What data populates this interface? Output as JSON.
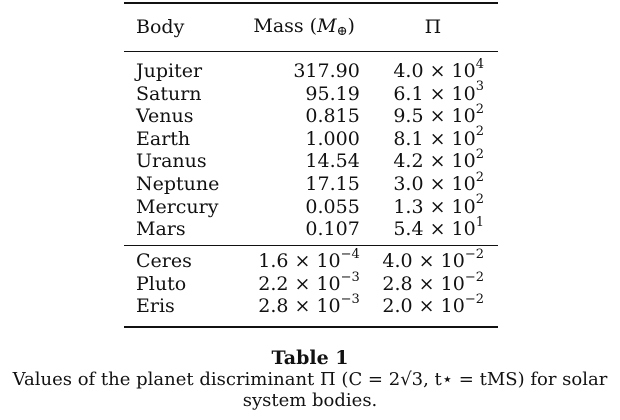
{
  "table": {
    "headers": [
      "Body",
      "Mass (M⊕)",
      "Π"
    ],
    "groups": [
      [
        [
          "Jupiter",
          "317.90",
          "4.0 × 10",
          "4"
        ],
        [
          "Saturn",
          "95.19",
          "6.1 × 10",
          "3"
        ],
        [
          "Venus",
          "0.815",
          "9.5 × 10",
          "2"
        ],
        [
          "Earth",
          "1.000",
          "8.1 × 10",
          "2"
        ],
        [
          "Uranus",
          "14.54",
          "4.2 × 10",
          "2"
        ],
        [
          "Neptune",
          "17.15",
          "3.0 × 10",
          "2"
        ],
        [
          "Mercury",
          "0.055",
          "1.3 × 10",
          "2"
        ],
        [
          "Mars",
          "0.107",
          "5.4 × 10",
          "1"
        ]
      ],
      [
        [
          "Ceres",
          "1.6 × 10",
          "−4",
          "4.0 × 10",
          "−2"
        ],
        [
          "Pluto",
          "2.2 × 10",
          "−3",
          "2.8 × 10",
          "−2"
        ],
        [
          "Eris",
          "2.8 × 10",
          "−3",
          "2.0 × 10",
          "−2"
        ]
      ]
    ]
  },
  "caption": {
    "title": "Table 1",
    "line1": "Values of the planet discriminant Π (C = 2√3, t⋆ = tMS) for solar",
    "line2": "system bodies."
  }
}
